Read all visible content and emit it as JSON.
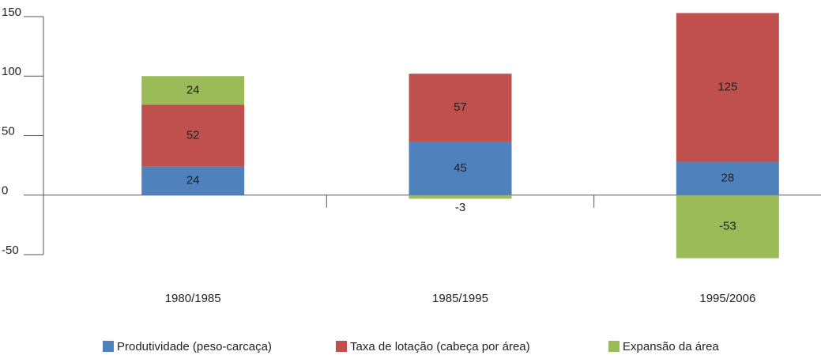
{
  "chart_data": {
    "type": "stacked-bar",
    "categories": [
      "1980/1985",
      "1985/1995",
      "1995/2006"
    ],
    "series": [
      {
        "name": "Produtividade (peso-carcaça)",
        "color": "#4f81bd",
        "values": [
          24,
          45,
          28
        ]
      },
      {
        "name": "Taxa de lotação (cabeça por área)",
        "color": "#c0504d",
        "values": [
          52,
          57,
          125
        ]
      },
      {
        "name": "Expansão da área",
        "color": "#9bbb59",
        "values": [
          24,
          -3,
          -53
        ]
      }
    ],
    "ylim": [
      -50,
      150
    ],
    "yticks": [
      -50,
      0,
      50,
      100,
      150
    ],
    "legend": "bottom"
  }
}
